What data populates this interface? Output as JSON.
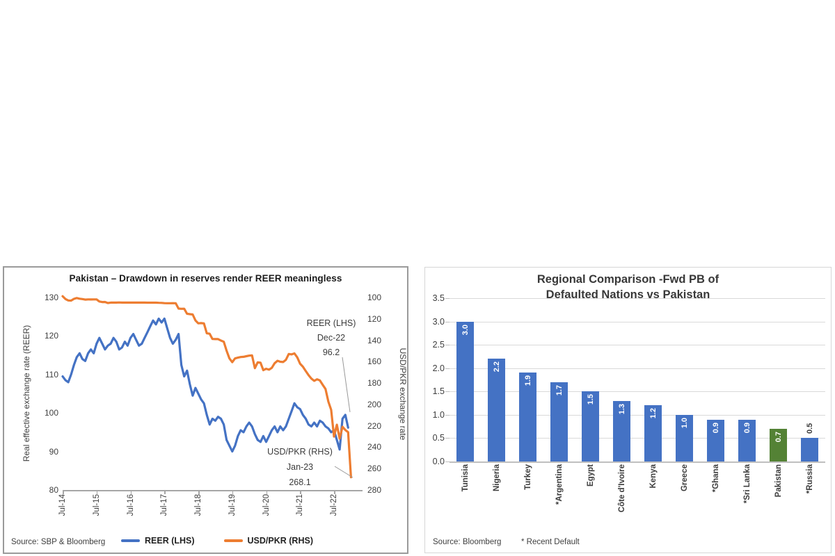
{
  "page": {
    "background": "#ffffff"
  },
  "colors": {
    "series_blue": "#4472C4",
    "series_orange": "#ED7D31",
    "bar_blue": "#4472C4",
    "bar_green_pakistan": "#548235",
    "gridline": "#d9d9d9",
    "axis_line": "#a6a6a6",
    "leader_line": "#999999"
  },
  "chart_data": [
    {
      "type": "line",
      "title": "Pakistan – Drawdown in reserves render REER meaningless",
      "source": "Source: SBP & Bloomberg",
      "ylabel_left": "Real effective exchange rate (REER)",
      "ylabel_right": "USD/PKR exchange rate",
      "y_left_ticks": [
        130,
        120,
        110,
        100,
        90,
        80
      ],
      "y_left_range": [
        80,
        130
      ],
      "y_right_ticks": [
        100,
        120,
        140,
        160,
        180,
        200,
        220,
        240,
        260,
        280
      ],
      "y_right_range": [
        100,
        280
      ],
      "y_right_inverted": true,
      "x_tick_labels": [
        "Jul-14",
        "Jul-15",
        "Jul-16",
        "Jul-17",
        "Jul-18",
        "Jul-19",
        "Jul-20",
        "Jul-21",
        "Jul-22"
      ],
      "x_start_month": "Jul-14",
      "legend_position": "bottom",
      "grid": false,
      "series": [
        {
          "name": "REER (LHS)",
          "axis": "left",
          "color": "#4472C4",
          "end_label": {
            "period": "Dec-22",
            "value": 96.2
          },
          "monthly_values": [
            109.5,
            108.5,
            108,
            110,
            112.5,
            114.5,
            115.5,
            114,
            113.5,
            115.5,
            116.5,
            115.5,
            118,
            119.5,
            118,
            116.5,
            117.5,
            118,
            119.5,
            118.5,
            116.5,
            117,
            118.5,
            117.5,
            119.5,
            120.5,
            119,
            117.5,
            118,
            119.5,
            121,
            122.5,
            124,
            123,
            124.5,
            123.5,
            124.5,
            122,
            119.5,
            118,
            119,
            120.5,
            112.5,
            109.5,
            111,
            107.5,
            104.5,
            106.5,
            105,
            103.5,
            102.5,
            99.5,
            97,
            98.5,
            98,
            99,
            98.5,
            97,
            93,
            91.5,
            90,
            91.5,
            94,
            95.5,
            95,
            96.5,
            97.5,
            96.5,
            94.5,
            93,
            92.5,
            94,
            92.5,
            94,
            95.5,
            96.5,
            95,
            96.5,
            95.5,
            96.5,
            98.5,
            100.5,
            102.5,
            101.5,
            101,
            99.5,
            98.5,
            97,
            96.5,
            97.5,
            96.5,
            98,
            97.5,
            96.5,
            96,
            95,
            95.5,
            93,
            90.5,
            98.5,
            99.5,
            96.2
          ]
        },
        {
          "name": "USD/PKR (RHS)",
          "axis": "right",
          "color": "#ED7D31",
          "end_label": {
            "period": "Jan-23",
            "value": 268.1
          },
          "monthly_values": [
            98.8,
            101.5,
            102.8,
            102.9,
            101.3,
            100.5,
            101.2,
            101.5,
            102,
            101.8,
            101.9,
            101.8,
            101.8,
            103.8,
            104.3,
            104.2,
            105.2,
            104.8,
            104.8,
            104.8,
            104.7,
            104.8,
            104.8,
            104.8,
            104.8,
            104.8,
            104.8,
            104.8,
            104.8,
            104.8,
            104.9,
            104.9,
            104.9,
            104.9,
            105,
            105.1,
            105.3,
            105.4,
            105.4,
            105.3,
            105.4,
            110.4,
            110.6,
            110.5,
            115.2,
            115.6,
            115.9,
            121.5,
            124.2,
            124,
            124.3,
            133.5,
            133.9,
            138.8,
            138.9,
            138.9,
            140.3,
            141.4,
            149.7,
            157,
            160.5,
            157,
            156.3,
            155.7,
            155.5,
            154.9,
            154.4,
            154.2,
            166.1,
            160.7,
            161,
            168,
            166.7,
            167.5,
            165.8,
            161.5,
            159.2,
            160.1,
            160.4,
            158.3,
            152.8,
            153.2,
            152.3,
            156,
            162,
            164.7,
            168.8,
            172.6,
            175.9,
            178,
            176.5,
            177.6,
            181.7,
            185.6,
            197.4,
            205,
            230,
            219,
            232,
            220.9,
            223.9,
            226,
            268.1
          ]
        }
      ],
      "annotations": [
        {
          "lines": [
            "REER (LHS)",
            "Dec-22",
            "96.2"
          ]
        },
        {
          "lines": [
            "USD/PKR (RHS)",
            "Jan-23",
            "268.1"
          ]
        }
      ]
    },
    {
      "type": "bar",
      "title_lines": [
        "Regional Comparison -Fwd PB of",
        "Defaulted Nations vs Pakistan"
      ],
      "categories": [
        "Tunisia",
        "Nigeria",
        "Turkey",
        "*Argentina",
        "Egypt",
        "Côte d'Ivoire",
        "Kenya",
        "Greece",
        "*Ghana",
        "*Sri Lanka",
        "Pakistan",
        "*Russia"
      ],
      "values": [
        3.0,
        2.2,
        1.9,
        1.7,
        1.5,
        1.3,
        1.2,
        1.0,
        0.9,
        0.9,
        0.7,
        0.5
      ],
      "highlight_category": "Pakistan",
      "bar_color_default": "#4472C4",
      "bar_color_highlight": "#548235",
      "value_label_color_inside": "#ffffff",
      "outside_label_category": "*Russia",
      "y_ticks": [
        3.5,
        3.0,
        2.5,
        2.0,
        1.5,
        1.0,
        0.5,
        0.0
      ],
      "ylim": [
        0,
        3.5
      ],
      "grid": true,
      "source": "Source: Bloomberg",
      "note": "* Recent Default"
    }
  ]
}
